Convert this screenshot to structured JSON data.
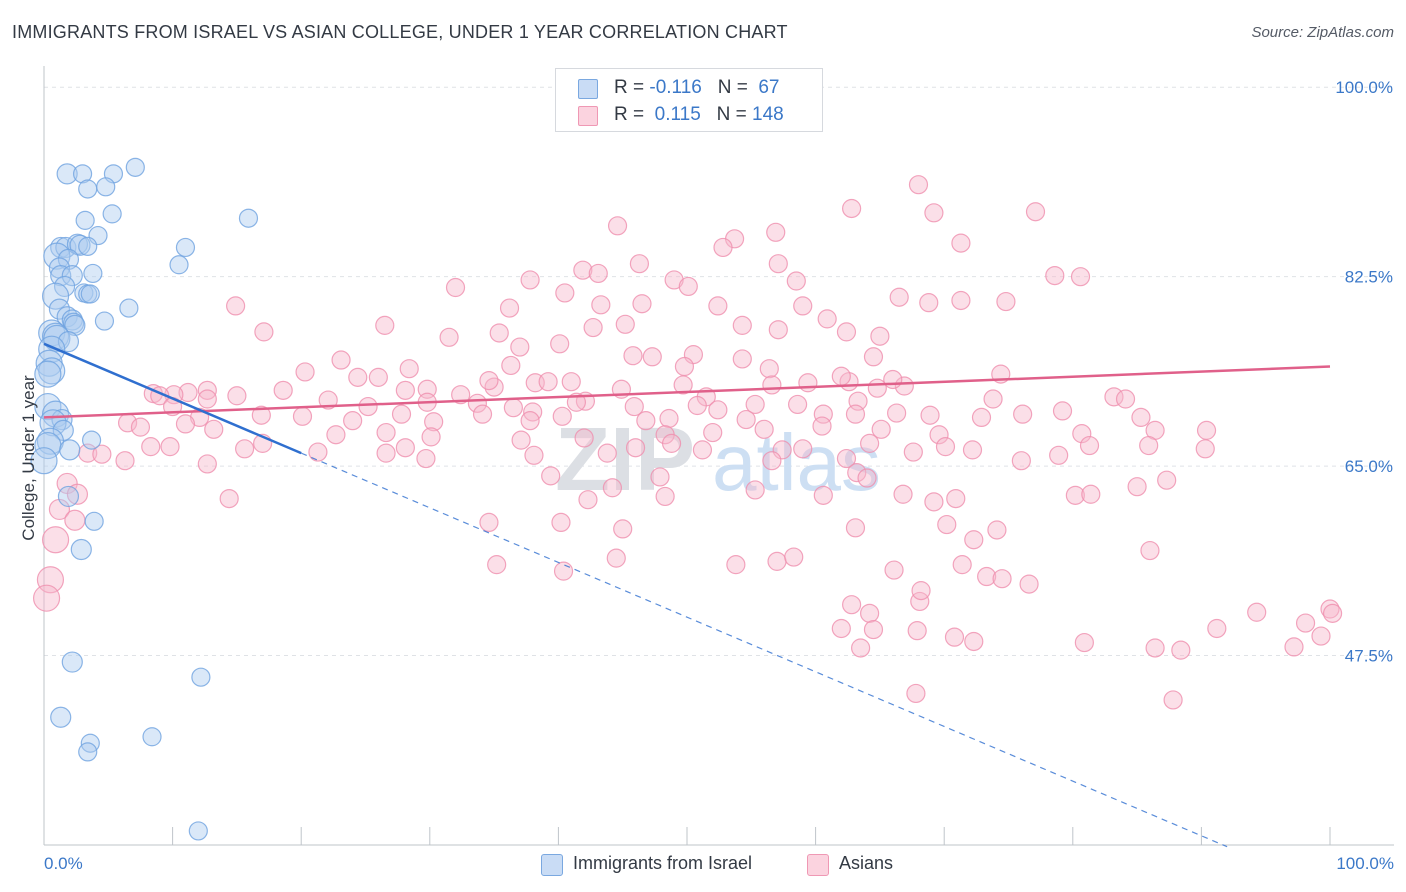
{
  "title": "IMMIGRANTS FROM ISRAEL VS ASIAN COLLEGE, UNDER 1 YEAR CORRELATION CHART",
  "source": "Source: ZipAtlas.com",
  "watermark": {
    "zip": "ZIP",
    "atlas": "atlas"
  },
  "legend": {
    "rows": [
      {
        "r_label": "R = ",
        "r_value": "-0.116",
        "n_label": "N = ",
        "n_value": " 67",
        "color": "#aecbf0"
      },
      {
        "r_label": "R = ",
        "r_value": " 0.115",
        "n_label": "N = ",
        "n_value": "148",
        "color": "#f7b8cb"
      }
    ]
  },
  "bottom_legend": [
    {
      "label": "Immigrants from Israel",
      "color": "#aecbf0"
    },
    {
      "label": "Asians",
      "color": "#f7b8cb"
    }
  ],
  "chart_data": {
    "type": "scatter",
    "title": "IMMIGRANTS FROM ISRAEL VS ASIAN COLLEGE, UNDER 1 YEAR CORRELATION CHART",
    "xlabel": "",
    "ylabel": "College, Under 1 year",
    "xlim": [
      0,
      100
    ],
    "ylim": [
      30,
      101.5
    ],
    "x_tick_labels": [
      "0.0%",
      "100.0%"
    ],
    "y_ticks": [
      47.5,
      65.0,
      82.5,
      100.0
    ],
    "y_tick_labels": [
      "47.5%",
      "65.0%",
      "82.5%",
      "100.0%"
    ],
    "grid": true,
    "colors": {
      "israel": "#6fa3e0",
      "israel_line": "#2f6fcf",
      "asians": "#f08aaa",
      "asians_line": "#e0608a"
    },
    "series": [
      {
        "name": "Immigrants from Israel",
        "trend": {
          "x0": 0,
          "y0": 76.3,
          "x1": 20,
          "y1": 66.2,
          "dash_to_x": 100,
          "dash_to_y": 25.8
        },
        "points": [
          [
            1.8,
            92.0
          ],
          [
            3.0,
            92.0
          ],
          [
            5.4,
            92.0
          ],
          [
            7.1,
            92.6
          ],
          [
            3.4,
            90.6
          ],
          [
            4.8,
            90.8
          ],
          [
            5.3,
            88.3
          ],
          [
            3.2,
            87.7
          ],
          [
            4.2,
            86.3
          ],
          [
            11.0,
            85.2
          ],
          [
            1.3,
            85.2
          ],
          [
            1.7,
            85.2
          ],
          [
            2.6,
            85.5
          ],
          [
            2.8,
            85.4
          ],
          [
            3.4,
            85.3
          ],
          [
            1.0,
            84.4
          ],
          [
            1.9,
            84.1
          ],
          [
            1.2,
            83.3
          ],
          [
            10.5,
            83.6
          ],
          [
            3.8,
            82.8
          ],
          [
            1.3,
            82.6
          ],
          [
            2.2,
            82.6
          ],
          [
            15.9,
            87.9
          ],
          [
            1.6,
            81.6
          ],
          [
            3.1,
            81.0
          ],
          [
            3.4,
            80.9
          ],
          [
            3.6,
            80.9
          ],
          [
            0.9,
            80.7
          ],
          [
            1.2,
            79.5
          ],
          [
            6.6,
            79.6
          ],
          [
            1.8,
            78.8
          ],
          [
            2.2,
            78.5
          ],
          [
            2.3,
            78.2
          ],
          [
            2.4,
            78.0
          ],
          [
            4.7,
            78.4
          ],
          [
            0.6,
            77.3
          ],
          [
            0.9,
            77.0
          ],
          [
            1.0,
            76.8
          ],
          [
            1.9,
            76.5
          ],
          [
            0.6,
            75.8
          ],
          [
            0.4,
            74.5
          ],
          [
            0.6,
            73.8
          ],
          [
            0.3,
            73.5
          ],
          [
            0.3,
            70.5
          ],
          [
            0.9,
            69.8
          ],
          [
            1.4,
            69.3
          ],
          [
            0.7,
            69.0
          ],
          [
            1.5,
            68.3
          ],
          [
            3.7,
            67.4
          ],
          [
            0.5,
            67.3
          ],
          [
            0.3,
            66.9
          ],
          [
            0.0,
            65.5
          ],
          [
            2.0,
            66.5
          ],
          [
            1.9,
            62.2
          ],
          [
            3.9,
            59.9
          ],
          [
            2.9,
            57.3
          ],
          [
            2.2,
            46.9
          ],
          [
            12.2,
            45.5
          ],
          [
            1.3,
            41.8
          ],
          [
            8.4,
            40.0
          ],
          [
            3.6,
            39.4
          ],
          [
            3.4,
            38.6
          ],
          [
            12.0,
            31.3
          ]
        ]
      },
      {
        "name": "Asians",
        "trend": {
          "x0": 0,
          "y0": 69.5,
          "x1": 100,
          "y1": 74.2
        },
        "points": [
          [
            68.0,
            91.0
          ],
          [
            62.8,
            88.8
          ],
          [
            69.2,
            88.4
          ],
          [
            77.1,
            88.5
          ],
          [
            44.6,
            87.2
          ],
          [
            56.9,
            86.6
          ],
          [
            53.7,
            86.0
          ],
          [
            71.3,
            85.6
          ],
          [
            52.8,
            85.2
          ],
          [
            46.3,
            83.7
          ],
          [
            41.9,
            83.1
          ],
          [
            57.1,
            83.7
          ],
          [
            78.6,
            82.6
          ],
          [
            49.0,
            82.2
          ],
          [
            37.8,
            82.2
          ],
          [
            43.1,
            82.8
          ],
          [
            58.5,
            82.1
          ],
          [
            80.6,
            82.5
          ],
          [
            32.0,
            81.5
          ],
          [
            40.5,
            81.0
          ],
          [
            50.1,
            81.6
          ],
          [
            66.5,
            80.6
          ],
          [
            74.8,
            80.2
          ],
          [
            71.3,
            80.3
          ],
          [
            46.5,
            80.0
          ],
          [
            59.0,
            79.8
          ],
          [
            43.3,
            79.9
          ],
          [
            36.2,
            79.6
          ],
          [
            52.4,
            79.8
          ],
          [
            60.9,
            78.6
          ],
          [
            68.8,
            80.1
          ],
          [
            57.1,
            77.6
          ],
          [
            42.7,
            77.8
          ],
          [
            35.4,
            77.3
          ],
          [
            45.2,
            78.1
          ],
          [
            54.3,
            78.0
          ],
          [
            62.4,
            77.4
          ],
          [
            65.0,
            77.0
          ],
          [
            14.9,
            79.8
          ],
          [
            17.1,
            77.4
          ],
          [
            26.5,
            78.0
          ],
          [
            37.0,
            76.0
          ],
          [
            31.5,
            76.9
          ],
          [
            40.1,
            76.3
          ],
          [
            45.8,
            75.2
          ],
          [
            50.5,
            75.3
          ],
          [
            54.3,
            74.9
          ],
          [
            49.8,
            74.2
          ],
          [
            64.5,
            75.1
          ],
          [
            47.3,
            75.1
          ],
          [
            56.4,
            74.0
          ],
          [
            56.6,
            72.5
          ],
          [
            59.4,
            72.7
          ],
          [
            62.6,
            72.8
          ],
          [
            64.8,
            72.2
          ],
          [
            66.9,
            72.4
          ],
          [
            74.4,
            73.5
          ],
          [
            62.0,
            73.3
          ],
          [
            66.0,
            73.0
          ],
          [
            28.4,
            74.0
          ],
          [
            20.3,
            73.7
          ],
          [
            23.1,
            74.8
          ],
          [
            26.0,
            73.2
          ],
          [
            36.3,
            74.3
          ],
          [
            24.4,
            73.2
          ],
          [
            41.0,
            72.8
          ],
          [
            28.1,
            72.0
          ],
          [
            29.8,
            72.1
          ],
          [
            35.0,
            72.3
          ],
          [
            38.2,
            72.7
          ],
          [
            44.9,
            72.1
          ],
          [
            49.7,
            72.5
          ],
          [
            42.1,
            71.0
          ],
          [
            51.5,
            71.4
          ],
          [
            39.2,
            72.8
          ],
          [
            32.4,
            71.6
          ],
          [
            34.6,
            72.9
          ],
          [
            18.6,
            72.0
          ],
          [
            15.0,
            71.5
          ],
          [
            12.7,
            72.0
          ],
          [
            11.2,
            71.8
          ],
          [
            10.1,
            71.6
          ],
          [
            8.5,
            71.7
          ],
          [
            9.0,
            71.5
          ],
          [
            12.7,
            71.2
          ],
          [
            22.1,
            71.1
          ],
          [
            25.2,
            70.5
          ],
          [
            29.8,
            70.9
          ],
          [
            33.7,
            70.8
          ],
          [
            36.5,
            70.4
          ],
          [
            38.0,
            70.0
          ],
          [
            41.4,
            70.9
          ],
          [
            45.9,
            70.5
          ],
          [
            50.8,
            70.6
          ],
          [
            52.4,
            70.2
          ],
          [
            55.3,
            70.7
          ],
          [
            58.6,
            70.7
          ],
          [
            63.3,
            71.0
          ],
          [
            73.8,
            71.2
          ],
          [
            83.2,
            71.4
          ],
          [
            10.0,
            70.5
          ],
          [
            12.1,
            69.5
          ],
          [
            16.9,
            69.7
          ],
          [
            20.1,
            69.6
          ],
          [
            24.0,
            69.2
          ],
          [
            27.8,
            69.8
          ],
          [
            30.3,
            69.1
          ],
          [
            34.1,
            69.8
          ],
          [
            37.8,
            69.2
          ],
          [
            40.3,
            69.6
          ],
          [
            46.8,
            69.2
          ],
          [
            48.6,
            69.4
          ],
          [
            54.6,
            69.3
          ],
          [
            60.6,
            69.8
          ],
          [
            63.1,
            69.8
          ],
          [
            66.3,
            69.9
          ],
          [
            68.9,
            69.7
          ],
          [
            72.9,
            69.5
          ],
          [
            76.1,
            69.8
          ],
          [
            79.2,
            70.1
          ],
          [
            84.1,
            71.2
          ],
          [
            6.5,
            69.0
          ],
          [
            7.5,
            68.6
          ],
          [
            11.0,
            68.9
          ],
          [
            13.2,
            68.4
          ],
          [
            22.7,
            67.9
          ],
          [
            26.6,
            68.1
          ],
          [
            30.1,
            67.7
          ],
          [
            37.1,
            67.4
          ],
          [
            42.0,
            67.6
          ],
          [
            48.3,
            67.9
          ],
          [
            52.0,
            68.1
          ],
          [
            56.0,
            68.4
          ],
          [
            60.5,
            68.7
          ],
          [
            65.1,
            68.4
          ],
          [
            69.6,
            67.9
          ],
          [
            80.7,
            68.0
          ],
          [
            85.3,
            69.5
          ],
          [
            86.4,
            68.3
          ],
          [
            85.9,
            66.9
          ],
          [
            3.4,
            66.2
          ],
          [
            4.5,
            66.1
          ],
          [
            6.3,
            65.5
          ],
          [
            8.3,
            66.8
          ],
          [
            9.8,
            66.8
          ],
          [
            12.7,
            65.2
          ],
          [
            15.6,
            66.6
          ],
          [
            17.0,
            67.1
          ],
          [
            21.3,
            66.3
          ],
          [
            26.6,
            66.2
          ],
          [
            28.1,
            66.7
          ],
          [
            29.7,
            65.7
          ],
          [
            38.1,
            66.0
          ],
          [
            43.8,
            66.2
          ],
          [
            46.0,
            66.7
          ],
          [
            48.8,
            67.1
          ],
          [
            51.2,
            66.5
          ],
          [
            57.4,
            66.5
          ],
          [
            59.0,
            66.6
          ],
          [
            62.4,
            65.7
          ],
          [
            64.2,
            67.1
          ],
          [
            67.6,
            66.3
          ],
          [
            70.1,
            66.8
          ],
          [
            72.2,
            66.5
          ],
          [
            76.0,
            65.5
          ],
          [
            78.9,
            66.0
          ],
          [
            81.3,
            66.9
          ],
          [
            1.8,
            63.4
          ],
          [
            2.6,
            62.4
          ],
          [
            14.4,
            62.0
          ],
          [
            48.3,
            62.2
          ],
          [
            60.6,
            62.3
          ],
          [
            63.2,
            64.4
          ],
          [
            64.0,
            63.9
          ],
          [
            66.8,
            62.4
          ],
          [
            69.2,
            61.7
          ],
          [
            80.2,
            62.3
          ],
          [
            85.0,
            63.1
          ],
          [
            90.4,
            68.3
          ],
          [
            1.2,
            61.0
          ],
          [
            2.4,
            60.0
          ],
          [
            34.6,
            59.8
          ],
          [
            45.0,
            59.2
          ],
          [
            53.8,
            55.9
          ],
          [
            70.2,
            59.6
          ],
          [
            86.0,
            57.2
          ],
          [
            100.0,
            51.8
          ],
          [
            0.9,
            58.2
          ],
          [
            0.5,
            54.5
          ],
          [
            0.2,
            52.8
          ],
          [
            35.2,
            55.9
          ],
          [
            40.4,
            55.3
          ],
          [
            44.5,
            56.5
          ],
          [
            57.0,
            56.2
          ],
          [
            62.0,
            50.0
          ],
          [
            64.2,
            51.4
          ],
          [
            67.9,
            49.8
          ],
          [
            70.8,
            49.2
          ],
          [
            72.3,
            48.8
          ],
          [
            63.5,
            48.2
          ],
          [
            80.9,
            48.7
          ],
          [
            86.4,
            48.2
          ],
          [
            88.4,
            48.0
          ],
          [
            91.2,
            50.0
          ],
          [
            94.3,
            51.5
          ],
          [
            98.1,
            50.5
          ],
          [
            97.2,
            48.3
          ],
          [
            99.3,
            49.3
          ],
          [
            100.2,
            51.4
          ],
          [
            76.6,
            54.1
          ],
          [
            68.1,
            52.5
          ],
          [
            64.5,
            49.9
          ],
          [
            62.8,
            52.2
          ],
          [
            58.3,
            56.6
          ],
          [
            40.2,
            59.8
          ],
          [
            56.6,
            65.5
          ],
          [
            39.4,
            64.1
          ],
          [
            42.3,
            61.9
          ],
          [
            44.2,
            63.0
          ],
          [
            55.3,
            62.8
          ],
          [
            47.9,
            64.0
          ],
          [
            63.1,
            59.3
          ],
          [
            66.1,
            55.4
          ],
          [
            74.1,
            59.1
          ],
          [
            70.9,
            62.0
          ],
          [
            81.4,
            62.4
          ],
          [
            90.3,
            66.6
          ],
          [
            87.3,
            63.7
          ],
          [
            73.3,
            54.8
          ],
          [
            67.8,
            44.0
          ],
          [
            87.8,
            43.4
          ],
          [
            72.3,
            58.2
          ],
          [
            68.2,
            53.5
          ],
          [
            74.5,
            54.6
          ],
          [
            71.4,
            55.9
          ]
        ]
      }
    ]
  }
}
